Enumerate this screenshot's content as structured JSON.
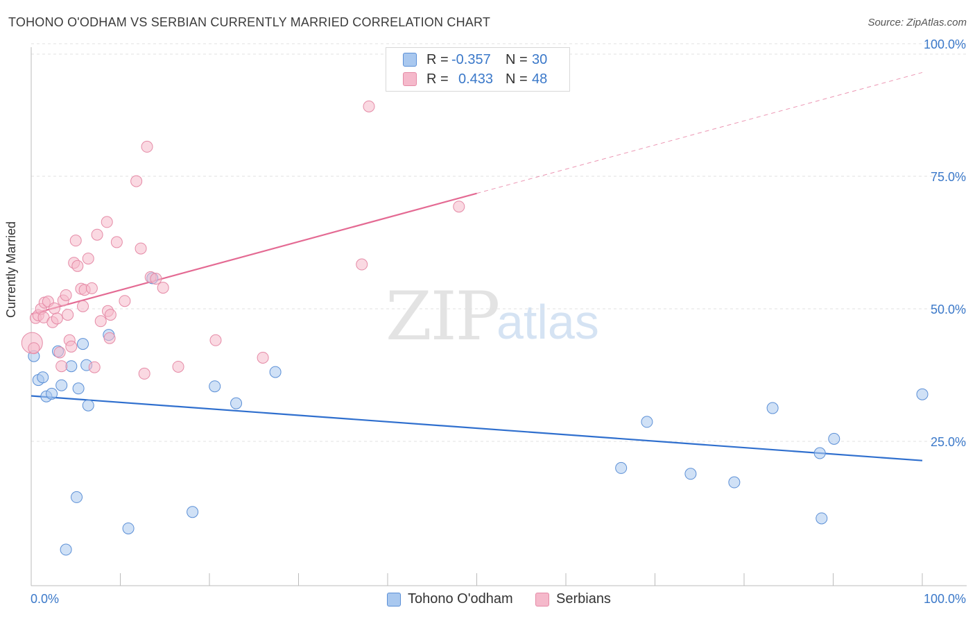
{
  "header": {
    "title": "TOHONO O'ODHAM VS SERBIAN CURRENTLY MARRIED CORRELATION CHART",
    "source": "Source: ZipAtlas.com"
  },
  "legend": {
    "rows": [
      {
        "r_label": "R =",
        "r_value": "-0.357",
        "n_label": "N =",
        "n_value": "30",
        "color": "#a9c8ef"
      },
      {
        "r_label": "R =",
        "r_value": "0.433",
        "n_label": "N =",
        "n_value": "48",
        "color": "#f5b9cb"
      }
    ]
  },
  "bottom_legend": {
    "items": [
      {
        "label": "Tohono O'odham",
        "color": "#a9c8ef"
      },
      {
        "label": "Serbians",
        "color": "#f5b9cb"
      }
    ]
  },
  "watermark": {
    "zip": "ZIP",
    "atlas": "atlas"
  },
  "chart_data": {
    "type": "scatter",
    "title": "TOHONO O'ODHAM VS SERBIAN CURRENTLY MARRIED CORRELATION CHART",
    "xlabel": "",
    "ylabel": "Currently Married",
    "xlim": [
      0,
      100
    ],
    "ylim": [
      0,
      100
    ],
    "x_tick_labels": [
      "0.0%",
      "100.0%"
    ],
    "y_tick_labels": [
      "100.0%",
      "75.0%",
      "50.0%",
      "25.0%"
    ],
    "y_tick_values": [
      100,
      75,
      50,
      25
    ],
    "series": [
      {
        "name": "Tohono O'odham",
        "color": "#a9c8ef",
        "stroke": "#5b8fd6",
        "trend_color": "#2f6fce",
        "trend": {
          "x0": 0,
          "y0": 35.8,
          "x1": 100,
          "y1": 23.6,
          "dash_from": 100
        },
        "points": [
          [
            0.3,
            43.3
          ],
          [
            0.8,
            38.8
          ],
          [
            1.3,
            39.3
          ],
          [
            1.7,
            35.7
          ],
          [
            2.3,
            36.2
          ],
          [
            3.0,
            44.2
          ],
          [
            3.4,
            37.8
          ],
          [
            3.9,
            6.8
          ],
          [
            4.5,
            41.4
          ],
          [
            5.1,
            16.7
          ],
          [
            5.3,
            37.2
          ],
          [
            5.8,
            45.6
          ],
          [
            6.4,
            34.0
          ],
          [
            6.2,
            41.6
          ],
          [
            8.7,
            47.3
          ],
          [
            10.9,
            10.8
          ],
          [
            13.6,
            58.0
          ],
          [
            18.1,
            13.9
          ],
          [
            20.6,
            37.6
          ],
          [
            23.0,
            34.4
          ],
          [
            27.4,
            40.3
          ],
          [
            66.2,
            22.2
          ],
          [
            69.1,
            30.9
          ],
          [
            74.0,
            21.1
          ],
          [
            78.9,
            19.5
          ],
          [
            83.2,
            33.5
          ],
          [
            88.5,
            25.0
          ],
          [
            88.7,
            12.7
          ],
          [
            90.1,
            27.7
          ],
          [
            100.0,
            36.1
          ]
        ]
      },
      {
        "name": "Serbians",
        "color": "#f5b9cb",
        "stroke": "#e58aa6",
        "trend_color": "#e46a93",
        "trend": {
          "x0": 0,
          "y0": 51.2,
          "x1": 100,
          "y1": 96.8,
          "dash_from": 50
        },
        "points": [
          [
            0.1,
            45.8
          ],
          [
            0.5,
            50.5
          ],
          [
            0.8,
            51.0
          ],
          [
            1.1,
            52.2
          ],
          [
            1.4,
            50.6
          ],
          [
            1.5,
            53.4
          ],
          [
            1.9,
            53.6
          ],
          [
            2.4,
            49.7
          ],
          [
            2.6,
            52.3
          ],
          [
            2.9,
            50.4
          ],
          [
            3.2,
            44.0
          ],
          [
            3.4,
            41.4
          ],
          [
            3.6,
            53.8
          ],
          [
            3.9,
            54.8
          ],
          [
            4.1,
            51.1
          ],
          [
            4.3,
            46.3
          ],
          [
            4.5,
            45.1
          ],
          [
            4.8,
            60.9
          ],
          [
            5.0,
            65.1
          ],
          [
            5.2,
            60.3
          ],
          [
            5.6,
            56.0
          ],
          [
            5.8,
            52.7
          ],
          [
            6.0,
            55.8
          ],
          [
            6.4,
            61.7
          ],
          [
            6.8,
            56.1
          ],
          [
            7.1,
            41.2
          ],
          [
            7.4,
            66.2
          ],
          [
            7.8,
            49.9
          ],
          [
            8.5,
            68.6
          ],
          [
            8.6,
            51.8
          ],
          [
            8.8,
            46.7
          ],
          [
            8.9,
            51.1
          ],
          [
            9.6,
            64.8
          ],
          [
            10.5,
            53.7
          ],
          [
            11.8,
            76.3
          ],
          [
            12.3,
            63.6
          ],
          [
            12.7,
            40.0
          ],
          [
            13.0,
            82.8
          ],
          [
            13.4,
            58.2
          ],
          [
            14.0,
            57.9
          ],
          [
            14.8,
            56.2
          ],
          [
            16.5,
            41.3
          ],
          [
            20.7,
            46.3
          ],
          [
            26.0,
            43.0
          ],
          [
            37.1,
            60.6
          ],
          [
            37.9,
            90.4
          ],
          [
            48.0,
            71.5
          ],
          [
            0.3,
            44.8
          ]
        ]
      }
    ]
  }
}
